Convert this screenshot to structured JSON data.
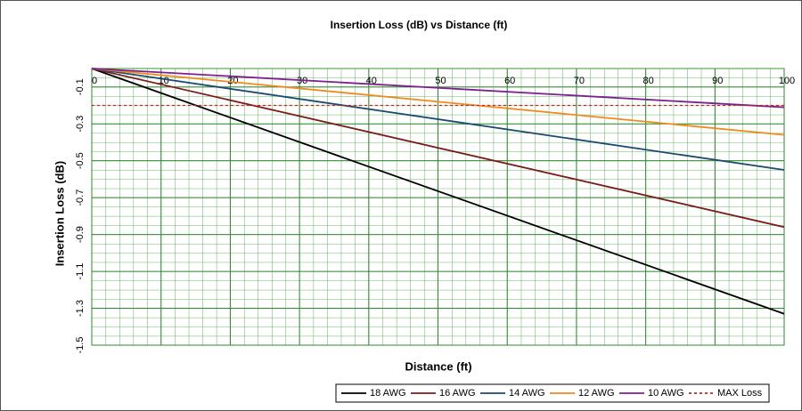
{
  "chart_data": {
    "type": "line",
    "title": "Insertion Loss (dB)  vs Distance (ft)",
    "x_label": "Distance (ft)",
    "y_label": "Insertion Loss (dB)",
    "x": [
      0,
      100
    ],
    "series": [
      {
        "name": "18 AWG",
        "color": "#000000",
        "values": [
          0,
          -1.33
        ]
      },
      {
        "name": "16 AWG",
        "color": "#7a1c1c",
        "values": [
          0,
          -0.86
        ]
      },
      {
        "name": "14 AWG",
        "color": "#1c4a6e",
        "values": [
          0,
          -0.55
        ]
      },
      {
        "name": "12 AWG",
        "color": "#f08a1c",
        "values": [
          0,
          -0.36
        ]
      },
      {
        "name": "10 AWG",
        "color": "#7d1f8e",
        "values": [
          0,
          -0.21
        ]
      },
      {
        "name": "MAX Loss",
        "color": "#d02020",
        "dashed": true,
        "values": [
          -0.2,
          -0.2
        ]
      }
    ],
    "xlim": [
      0,
      100
    ],
    "xticks": [
      0,
      10,
      20,
      30,
      40,
      50,
      60,
      70,
      80,
      90,
      100
    ],
    "ylim": [
      -1.5,
      0
    ],
    "yticks": [
      -0.1,
      -0.3,
      -0.5,
      -0.7,
      -0.9,
      -1.1,
      -1.3,
      -1.5
    ],
    "grid": true,
    "legend": "bottom-right"
  }
}
